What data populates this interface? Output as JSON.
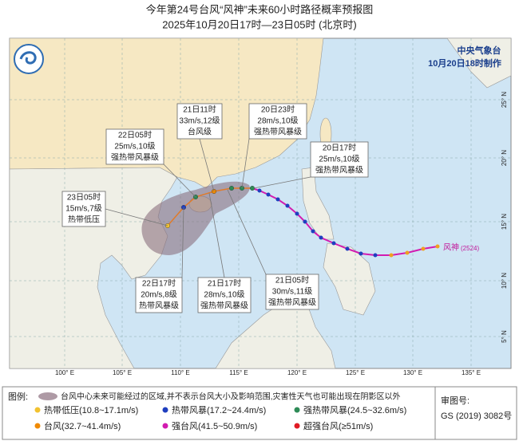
{
  "header": {
    "title": "今年第24号台风“风神”未来60小时路径概率预报图",
    "subtitle": "2025年10月20日17时—23日05时 (北京时)"
  },
  "agency": {
    "name": "中央气象台",
    "issued": "10月20日18时制作"
  },
  "map": {
    "lon_labels": [
      "100° E",
      "105° E",
      "110° E",
      "115° E",
      "120° E",
      "125° E",
      "130° E",
      "135° E"
    ],
    "lat_labels": [
      "25° N",
      "20° N",
      "15° N",
      "10° N",
      "5° N"
    ],
    "storm_label": "风神",
    "storm_code": "(2524)",
    "annotations": [
      {
        "lines": [
          "21日11时",
          "33m/s,12级",
          "台风级"
        ]
      },
      {
        "lines": [
          "20日23时",
          "28m/s,10级",
          "强热带风暴级"
        ]
      },
      {
        "lines": [
          "22日05时",
          "25m/s,10级",
          "强热带风暴级"
        ]
      },
      {
        "lines": [
          "20日17时",
          "25m/s,10级",
          "强热带风暴级"
        ]
      },
      {
        "lines": [
          "23日05时",
          "15m/s,7级",
          "热带低压"
        ]
      },
      {
        "lines": [
          "22日17时",
          "20m/s,8级",
          "热带风暴级"
        ]
      },
      {
        "lines": [
          "21日17时",
          "28m/s,10级",
          "强热带风暴级"
        ]
      },
      {
        "lines": [
          "21日05时",
          "30m/s,11级",
          "强热带风暴级"
        ]
      }
    ]
  },
  "legend": {
    "title": "图例:",
    "cone": "台风中心未来可能经过的区域,并不表示台风大小及影响范围,灾害性天气也可能出现在阴影区以外",
    "items": [
      "热带低压(10.8~17.1m/s)",
      "热带风暴(17.2~24.4m/s)",
      "强热带风暴(24.5~32.6m/s)",
      "台风(32.7~41.4m/s)",
      "强台风(41.5~50.9m/s)",
      "超强台风(≥51m/s)"
    ],
    "approval_label": "审图号:",
    "approval_number": "GS (2019) 3082号"
  }
}
